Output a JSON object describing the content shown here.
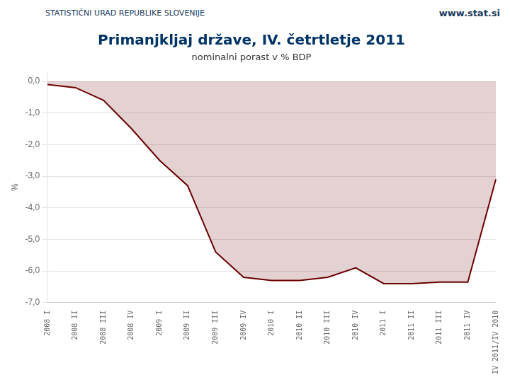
{
  "chart_data": {
    "type": "area",
    "title": "Primanjkljaj države, IV. četrtletje 2011",
    "subtitle": "nominalni porast v % BDP",
    "ylabel": "%",
    "annotations": [
      "STATISTIČNI URAD REPUBLIKE SLOVENIJE",
      "www.stat.si"
    ],
    "categories": [
      "2008 I",
      "2008 II",
      "2008 III",
      "2008 IV",
      "2009 I",
      "2009 II",
      "2009 III",
      "2009 IV",
      "2010 I",
      "2010 II",
      "2010 III",
      "2010 IV",
      "2011 I",
      "2011 II",
      "2011 III",
      "2011 IV",
      "IV 2011/IV 2010"
    ],
    "values": [
      -0.1,
      -0.2,
      -0.6,
      -1.5,
      -2.5,
      -3.3,
      -5.4,
      -6.2,
      -6.3,
      -6.3,
      -6.2,
      -5.9,
      -6.4,
      -6.4,
      -6.35,
      -6.35,
      -3.1
    ],
    "color": "#6b0000",
    "ylim": [
      -7.0,
      0.3
    ],
    "yticks": [
      {
        "value": 0.0,
        "label": "0,0"
      },
      {
        "value": -1.0,
        "label": "-1,0"
      },
      {
        "value": -2.0,
        "label": "-2,0"
      },
      {
        "value": -3.0,
        "label": "-3,0"
      },
      {
        "value": -4.0,
        "label": "-4,0"
      },
      {
        "value": -5.0,
        "label": "-5,0"
      },
      {
        "value": -6.0,
        "label": "-6,0"
      },
      {
        "value": -7.0,
        "label": "-7,0"
      }
    ],
    "grid": true
  }
}
